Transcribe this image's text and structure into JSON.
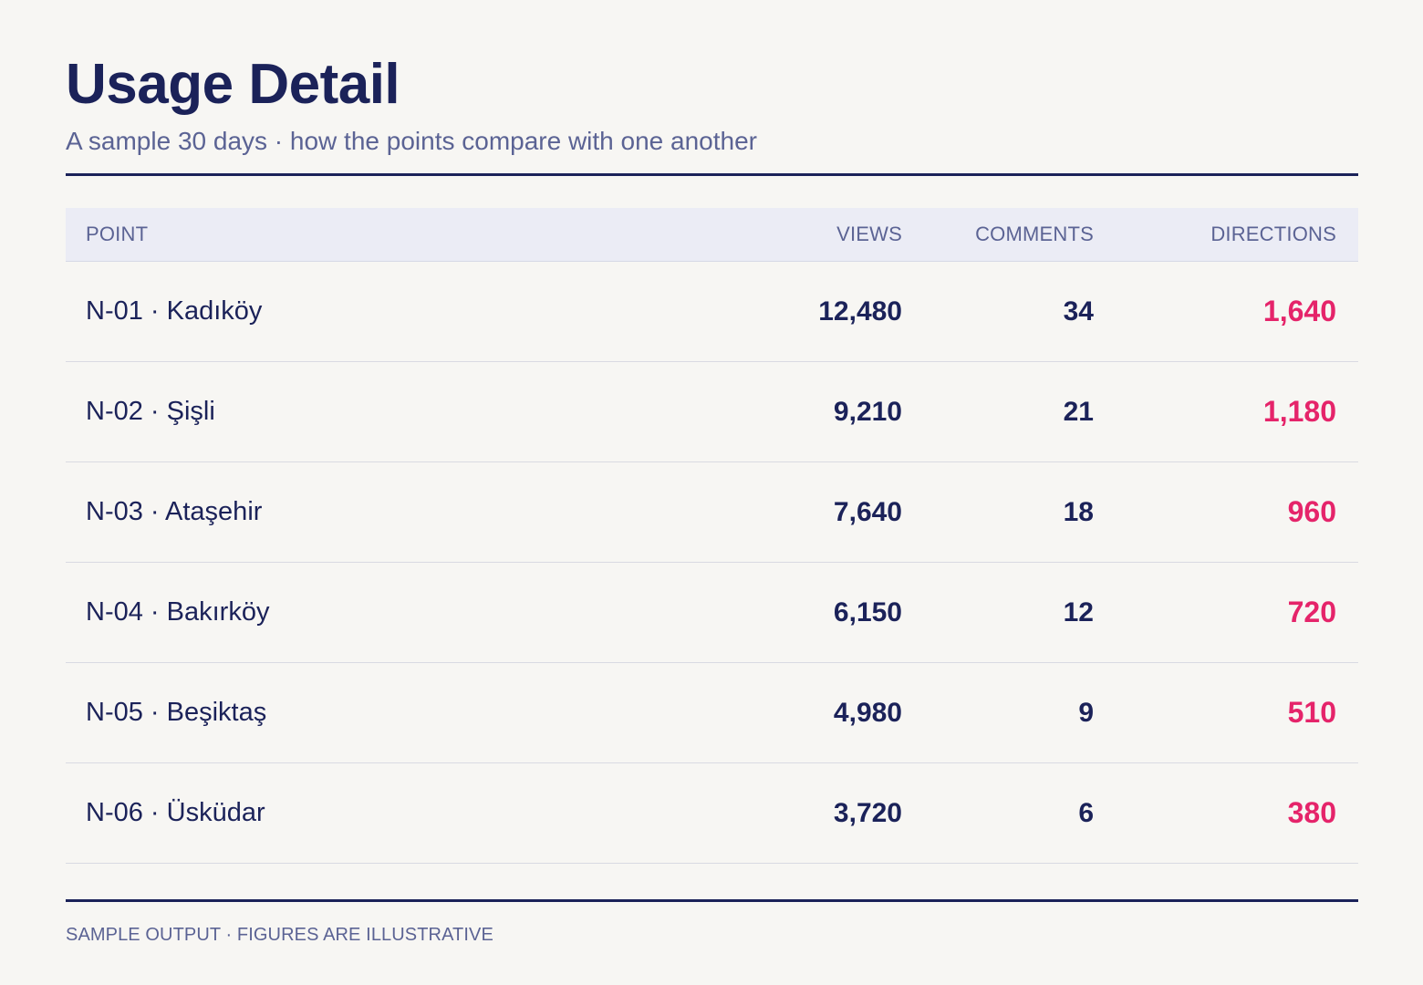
{
  "header": {
    "title": "Usage Detail",
    "subtitle": "A sample 30 days · how the points compare with one another"
  },
  "table": {
    "columns": {
      "point": "POINT",
      "views": "VIEWS",
      "comments": "COMMENTS",
      "directions": "DIRECTIONS"
    },
    "rows": [
      {
        "point": "N-01 · Kadıköy",
        "views": "12,480",
        "comments": "34",
        "directions": "1,640"
      },
      {
        "point": "N-02 · Şişli",
        "views": "9,210",
        "comments": "21",
        "directions": "1,180"
      },
      {
        "point": "N-03 · Ataşehir",
        "views": "7,640",
        "comments": "18",
        "directions": "960"
      },
      {
        "point": "N-04 · Bakırköy",
        "views": "6,150",
        "comments": "12",
        "directions": "720"
      },
      {
        "point": "N-05 · Beşiktaş",
        "views": "4,980",
        "comments": "9",
        "directions": "510"
      },
      {
        "point": "N-06 · Üsküdar",
        "views": "3,720",
        "comments": "6",
        "directions": "380"
      }
    ]
  },
  "footer": {
    "note": "SAMPLE OUTPUT · FIGURES ARE ILLUSTRATIVE"
  },
  "colors": {
    "accent": "#e5246a",
    "primary": "#1b2259",
    "muted": "#5b6394",
    "background": "#f7f6f3",
    "header_band": "#ebecf5"
  }
}
